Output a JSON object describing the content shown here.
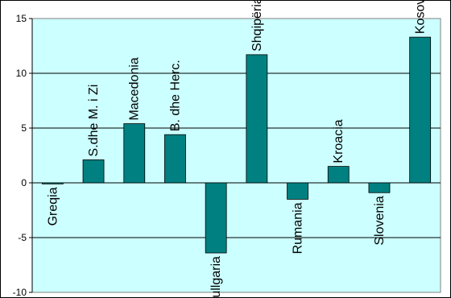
{
  "chart_data": {
    "type": "bar",
    "categories": [
      "Greqia",
      "S.dhe M. i Zi",
      "Macedonia",
      "B. dhe Herc.",
      "Bullgaria",
      "Shqipëria",
      "Rumania",
      "Kroacia",
      "Slovenia",
      "Kosova"
    ],
    "values": [
      -0.1,
      2.1,
      5.4,
      4.4,
      -6.4,
      11.7,
      -1.5,
      1.5,
      -0.9,
      13.3
    ],
    "ylim": [
      -10,
      15
    ],
    "yticks": [
      "15",
      "10",
      "5",
      "0",
      "-5",
      "-10"
    ],
    "ytick_values": [
      15,
      10,
      5,
      0,
      -5,
      -10
    ],
    "grid": true,
    "legend": "none",
    "title": "",
    "xlabel": "",
    "ylabel": ""
  },
  "colors": {
    "plot_background": "#ccffff",
    "bar_fill": "#008080",
    "bar_stroke": "#000000",
    "gridline": "#000000",
    "border": "#000000"
  }
}
